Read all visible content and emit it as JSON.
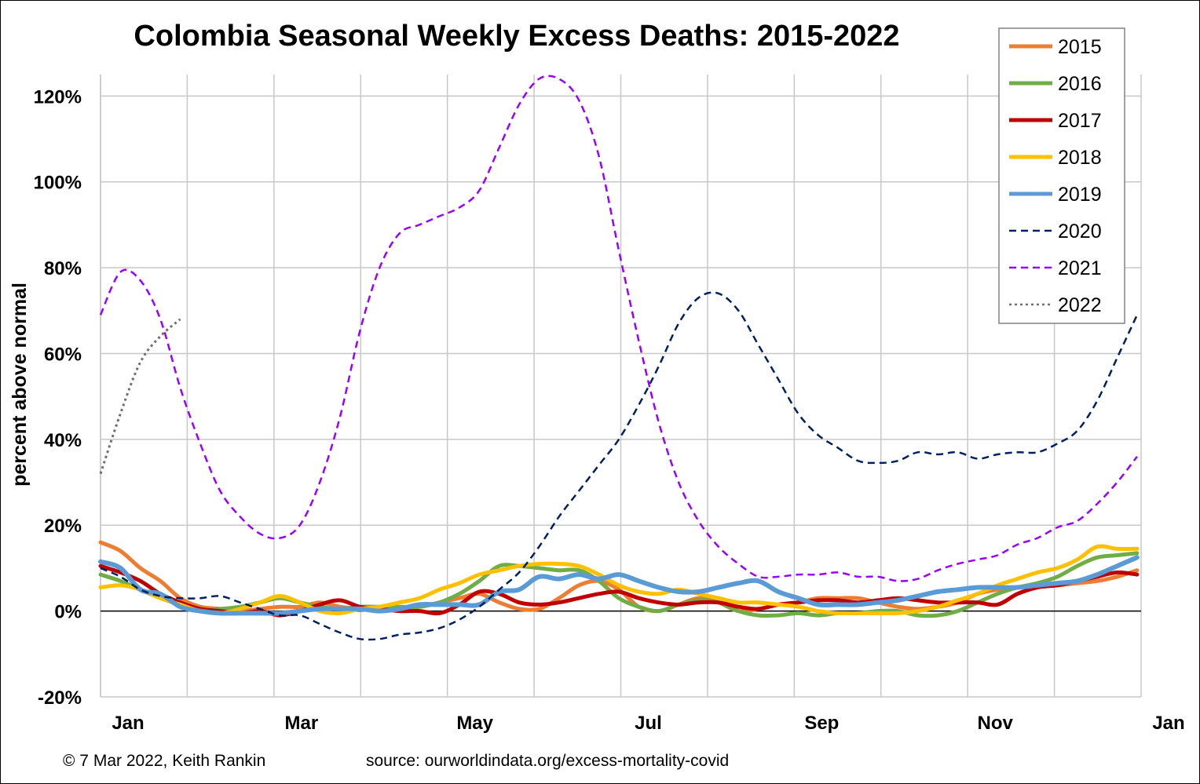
{
  "chart_data": {
    "type": "line",
    "title": "Colombia Seasonal Weekly Excess Deaths: 2015-2022",
    "ylabel": "percent above normal",
    "xlabel": "",
    "ylim": [
      -20,
      125
    ],
    "yticks": [
      120,
      100,
      80,
      60,
      40,
      20,
      0,
      -20
    ],
    "ytick_labels": [
      "120%",
      "100%",
      "80%",
      "60%",
      "40%",
      "20%",
      "0%",
      "-20%"
    ],
    "x_unit": "week of year",
    "xlim": [
      1,
      53
    ],
    "xtick_labels": [
      "Jan",
      "Mar",
      "May",
      "Jul",
      "Sep",
      "Nov",
      "Jan"
    ],
    "xtick_weeks": [
      1,
      9.7,
      18.4,
      27.1,
      35.8,
      44.5,
      53.2
    ],
    "grid": true,
    "legend_position": "top-right",
    "series": [
      {
        "name": "2015",
        "color": "#ED7D31",
        "style": "solid",
        "width": 5,
        "x": [
          1,
          2,
          3,
          4,
          5,
          6,
          7,
          8,
          9,
          10,
          11,
          12,
          13,
          14,
          15,
          16,
          17,
          18,
          19,
          20,
          21,
          22,
          23,
          24,
          25,
          26,
          27,
          28,
          29,
          30,
          31,
          32,
          33,
          34,
          35,
          36,
          37,
          38,
          39,
          40,
          41,
          42,
          43,
          44,
          45,
          46,
          47,
          48,
          49,
          50,
          51,
          52,
          53
        ],
        "y": [
          16,
          14,
          10,
          7,
          3,
          1,
          0.5,
          0,
          0.5,
          1,
          1,
          2,
          1,
          0.5,
          0,
          0.5,
          1,
          2,
          3,
          4,
          2,
          0.5,
          0.5,
          3,
          6,
          7,
          5,
          1,
          0,
          1.5,
          3,
          2,
          0,
          0.5,
          1.5,
          2,
          3,
          3,
          3,
          2,
          1,
          0.5,
          1,
          2,
          4,
          5,
          5.5,
          6,
          6,
          6.5,
          7,
          8,
          9.5
        ]
      },
      {
        "name": "2016",
        "color": "#70AD47",
        "style": "solid",
        "width": 5,
        "x": [
          1,
          2,
          3,
          4,
          5,
          6,
          7,
          8,
          9,
          10,
          11,
          12,
          13,
          14,
          15,
          16,
          17,
          18,
          19,
          20,
          21,
          22,
          23,
          24,
          25,
          26,
          27,
          28,
          29,
          30,
          31,
          32,
          33,
          34,
          35,
          36,
          37,
          38,
          39,
          40,
          41,
          42,
          43,
          44,
          45,
          46,
          47,
          48,
          49,
          50,
          51,
          52,
          53
        ],
        "y": [
          8.5,
          7,
          5,
          3,
          1.5,
          0.5,
          0.5,
          1,
          2,
          3,
          2,
          1,
          0.5,
          1,
          1,
          1,
          1,
          2,
          4,
          7,
          10.5,
          10.5,
          10,
          9.5,
          9.5,
          7,
          3,
          1,
          0,
          1.5,
          2.5,
          2,
          0,
          -1,
          -1,
          -0.5,
          -1,
          -0.5,
          -0.5,
          0,
          0,
          -1,
          -1,
          0,
          2,
          4,
          5.5,
          6.5,
          8,
          10.5,
          12.5,
          13,
          13.5
        ]
      },
      {
        "name": "2017",
        "color": "#C00000",
        "style": "solid",
        "width": 5,
        "x": [
          1,
          2,
          3,
          4,
          5,
          6,
          7,
          8,
          9,
          10,
          11,
          12,
          13,
          14,
          15,
          16,
          17,
          18,
          19,
          20,
          21,
          22,
          23,
          24,
          25,
          26,
          27,
          28,
          29,
          30,
          31,
          32,
          33,
          34,
          35,
          36,
          37,
          38,
          39,
          40,
          41,
          42,
          43,
          44,
          45,
          46,
          47,
          48,
          49,
          50,
          51,
          52,
          53
        ],
        "y": [
          10.5,
          9,
          7,
          4,
          2,
          0.5,
          0,
          -0.5,
          0,
          -1,
          0,
          1.5,
          2.5,
          1,
          0.5,
          0,
          0,
          -0.5,
          1.5,
          4.5,
          4,
          2,
          1.5,
          2,
          3,
          4,
          4.5,
          3,
          2,
          1.5,
          2,
          2,
          1,
          0.5,
          1.5,
          2,
          2.5,
          2.5,
          2,
          2.5,
          3,
          2.5,
          2,
          2,
          2,
          1.5,
          4,
          5.5,
          6,
          7,
          8,
          9,
          8.5
        ]
      },
      {
        "name": "2018",
        "color": "#FFC000",
        "style": "solid",
        "width": 5,
        "x": [
          1,
          2,
          3,
          4,
          5,
          6,
          7,
          8,
          9,
          10,
          11,
          12,
          13,
          14,
          15,
          16,
          17,
          18,
          19,
          20,
          21,
          22,
          23,
          24,
          25,
          26,
          27,
          28,
          29,
          30,
          31,
          32,
          33,
          34,
          35,
          36,
          37,
          38,
          39,
          40,
          41,
          42,
          43,
          44,
          45,
          46,
          47,
          48,
          49,
          50,
          51,
          52,
          53
        ],
        "y": [
          5.5,
          6,
          5,
          3,
          1.5,
          0,
          -0.5,
          0.5,
          2,
          3.5,
          2,
          0,
          -0.5,
          0.5,
          1,
          2,
          3,
          5,
          6.5,
          8.5,
          9.5,
          10.5,
          11,
          11,
          10.5,
          8.5,
          6,
          4.5,
          4,
          5,
          4,
          3,
          2,
          2,
          1.5,
          1,
          0,
          -0.5,
          -0.5,
          -0.5,
          -0.5,
          0,
          1,
          2.5,
          4,
          6,
          7.5,
          9,
          10,
          12,
          15,
          14.5,
          14.5
        ]
      },
      {
        "name": "2019",
        "color": "#5B9BD5",
        "style": "solid",
        "width": 6,
        "x": [
          1,
          2,
          3,
          4,
          5,
          6,
          7,
          8,
          9,
          10,
          11,
          12,
          13,
          14,
          15,
          16,
          17,
          18,
          19,
          20,
          21,
          22,
          23,
          24,
          25,
          26,
          27,
          28,
          29,
          30,
          31,
          32,
          33,
          34,
          35,
          36,
          37,
          38,
          39,
          40,
          41,
          42,
          43,
          44,
          45,
          46,
          47,
          48,
          49,
          50,
          51,
          52,
          53
        ],
        "y": [
          11.5,
          10,
          5,
          4,
          1,
          0,
          -0.5,
          -0.5,
          -0.5,
          -0.5,
          0,
          0.5,
          0.5,
          0.5,
          0,
          0.5,
          1.5,
          1.5,
          1.5,
          1.5,
          4.5,
          5,
          8,
          7.5,
          8.5,
          7.5,
          8.5,
          7,
          5.5,
          4.5,
          4.5,
          5.5,
          6.5,
          7,
          4.5,
          3,
          1.5,
          1.5,
          1.5,
          2,
          2.5,
          3.5,
          4.5,
          5,
          5.5,
          5.5,
          5.5,
          6,
          6.5,
          7,
          8.5,
          10.5,
          12.5
        ]
      },
      {
        "name": "2020",
        "color": "#002060",
        "style": "dashed",
        "width": 2.5,
        "x": [
          1,
          2,
          3,
          4,
          5,
          6,
          7,
          8,
          9,
          10,
          11,
          12,
          13,
          14,
          15,
          16,
          17,
          18,
          19,
          20,
          21,
          22,
          23,
          24,
          25,
          26,
          27,
          28,
          29,
          30,
          31,
          32,
          33,
          34,
          35,
          36,
          37,
          38,
          39,
          40,
          41,
          42,
          43,
          44,
          45,
          46,
          47,
          48,
          49,
          50,
          51,
          52,
          53
        ],
        "y": [
          10,
          8,
          5,
          3.5,
          3,
          3,
          3.5,
          2,
          0.5,
          -1,
          -1,
          -3,
          -5,
          -6.5,
          -6.5,
          -5.5,
          -5,
          -4,
          -2,
          1,
          5,
          9,
          15,
          22,
          28,
          34,
          40,
          48,
          57,
          67,
          73,
          74,
          70,
          62,
          54,
          46,
          41,
          38,
          35,
          34.5,
          35,
          37,
          36.5,
          37,
          35.5,
          36.5,
          37,
          37,
          39,
          42,
          49,
          59,
          69
        ]
      },
      {
        "name": "2021",
        "color": "#9900FF",
        "style": "dashed",
        "width": 2.5,
        "x": [
          1,
          2,
          3,
          4,
          5,
          6,
          7,
          8,
          9,
          10,
          11,
          12,
          13,
          14,
          15,
          16,
          17,
          18,
          19,
          20,
          21,
          22,
          23,
          24,
          25,
          26,
          27,
          28,
          29,
          30,
          31,
          32,
          33,
          34,
          35,
          36,
          37,
          38,
          39,
          40,
          41,
          42,
          43,
          44,
          45,
          46,
          47,
          48,
          49,
          50,
          51,
          52,
          53
        ],
        "y": [
          69,
          79,
          77,
          68,
          52,
          39,
          28,
          22,
          18,
          17,
          20,
          30,
          45,
          65,
          80,
          88,
          90,
          92,
          94,
          98,
          108,
          118,
          124,
          124,
          119,
          106,
          84,
          63,
          44,
          30,
          21,
          15,
          11,
          8,
          8,
          8.5,
          8.5,
          9,
          8,
          8,
          7,
          7.5,
          9.5,
          11,
          12,
          13,
          15.5,
          17,
          19.5,
          21,
          25,
          30,
          36
        ]
      },
      {
        "name": "2022",
        "color": "#6E6E6E",
        "style": "dotted",
        "width": 3,
        "x": [
          1,
          2,
          3,
          4,
          5
        ],
        "y": [
          32,
          46,
          58,
          64,
          68
        ]
      }
    ]
  },
  "footer": {
    "copyright": "© 7 Mar 2022, Keith Rankin",
    "source": "source: ourworldindata.org/excess-mortality-covid"
  }
}
